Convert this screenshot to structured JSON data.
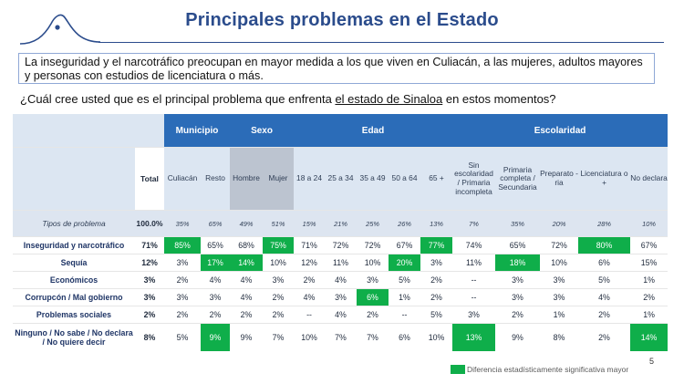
{
  "title": "Principales problemas en el Estado",
  "intro": "La inseguridad y el narcotráfico preocupan en mayor medida a los que viven en Culiacán, a las mujeres, adultos mayores y personas con estudios de licenciatura o más.",
  "question": {
    "pre": "¿Cuál cree usted que es el principal problema que enfrenta ",
    "underlined": "el estado de Sinaloa",
    "post": " en estos momentos?"
  },
  "table": {
    "groups": {
      "municipio": "Municipio",
      "sexo": "Sexo",
      "edad": "Edad",
      "escolaridad": "Escolaridad"
    },
    "total_label": "Total",
    "columns": [
      "Culiacán",
      "Resto",
      "Hombre",
      "Mujer",
      "18 a 24",
      "25 a 34",
      "35 a 49",
      "50 a 64",
      "65 +",
      "Sin escolaridad / Primaria incompleta",
      "Primaria completa / Secundaria",
      "Preparato -ria",
      "Licenciatura o +",
      "No declara"
    ],
    "tipos_label": "Tipos de problema",
    "tipos_total": "100.0%",
    "tipos_values": [
      "35%",
      "65%",
      "49%",
      "51%",
      "15%",
      "21%",
      "25%",
      "26%",
      "13%",
      "7%",
      "35%",
      "20%",
      "28%",
      "10%"
    ],
    "rows": [
      {
        "label": "Inseguridad y narcotráfico",
        "total": "71%",
        "values": [
          "85%",
          "65%",
          "68%",
          "75%",
          "71%",
          "72%",
          "72%",
          "67%",
          "77%",
          "74%",
          "65%",
          "72%",
          "80%",
          "67%"
        ]
      },
      {
        "label": "Sequía",
        "total": "12%",
        "values": [
          "3%",
          "17%",
          "14%",
          "10%",
          "12%",
          "11%",
          "10%",
          "20%",
          "3%",
          "11%",
          "18%",
          "10%",
          "6%",
          "15%"
        ]
      },
      {
        "label": "Económicos",
        "total": "3%",
        "values": [
          "2%",
          "4%",
          "4%",
          "3%",
          "2%",
          "4%",
          "3%",
          "5%",
          "2%",
          "--",
          "3%",
          "3%",
          "5%",
          "1%"
        ]
      },
      {
        "label": "Corrupcón / Mal gobierno",
        "total": "3%",
        "values": [
          "3%",
          "3%",
          "4%",
          "2%",
          "4%",
          "3%",
          "6%",
          "1%",
          "2%",
          "--",
          "3%",
          "3%",
          "4%",
          "2%"
        ]
      },
      {
        "label": "Problemas sociales",
        "total": "2%",
        "values": [
          "2%",
          "2%",
          "2%",
          "2%",
          "--",
          "4%",
          "2%",
          "--",
          "5%",
          "3%",
          "2%",
          "1%",
          "2%",
          "1%"
        ]
      },
      {
        "label": "Ninguno / No sabe / No declara / No quiere decir",
        "total": "8%",
        "values": [
          "5%",
          "9%",
          "9%",
          "7%",
          "10%",
          "7%",
          "7%",
          "6%",
          "10%",
          "13%",
          "9%",
          "8%",
          "2%",
          "14%"
        ]
      }
    ]
  },
  "page_number": "5",
  "legend": "Diferencia estadísticamente significativa mayor",
  "colors": {
    "accent_blue": "#2b6cb8",
    "significant_green": "#0fae4a",
    "title_blue": "#2b4c8c"
  }
}
